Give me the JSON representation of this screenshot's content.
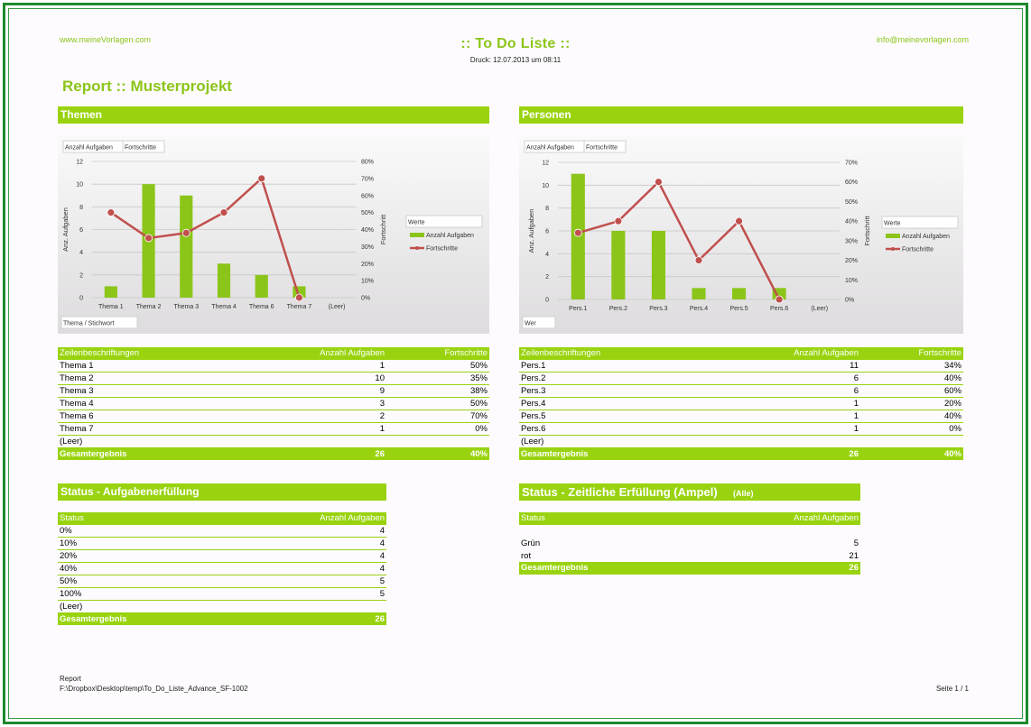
{
  "header": {
    "left_link": "www.meineVorlagen.com",
    "title": ":: To Do Liste ::",
    "print_info": "Druck: 12.07.2013 um 08:11",
    "right_link": "info@meinevorlagen.com"
  },
  "report_title": "Report :: Musterprojekt",
  "themen": {
    "section_title": "Themen",
    "chart_data": {
      "type": "bar",
      "field_buttons": [
        "Anzahl Aufgaben",
        "Fortschritte"
      ],
      "axis_button": "Thema / Stichwort",
      "categories": [
        "Thema 1",
        "Thema 2",
        "Thema 3",
        "Thema 4",
        "Thema 6",
        "Thema 7",
        "(Leer)"
      ],
      "ylabel": "Anz. Aufgaben",
      "y2label": "Fortschritt",
      "ylim": [
        0,
        12
      ],
      "yticks": [
        "0",
        "2",
        "4",
        "6",
        "8",
        "10",
        "12"
      ],
      "y2lim": [
        0,
        80
      ],
      "y2ticks": [
        "0%",
        "10%",
        "20%",
        "30%",
        "40%",
        "50%",
        "60%",
        "70%",
        "80%"
      ],
      "legend_title": "Werte",
      "legend_placement": "right",
      "series": [
        {
          "name": "Anzahl Aufgaben",
          "type": "bar",
          "color": "#8cc51a",
          "values": [
            1,
            10,
            9,
            3,
            2,
            1,
            null
          ]
        },
        {
          "name": "Fortschritte",
          "type": "line",
          "color": "#c0504d",
          "values": [
            50,
            35,
            38,
            50,
            70,
            0,
            null
          ]
        }
      ]
    },
    "table": {
      "headers": [
        "Zeilenbeschriftungen",
        "Anzahl Aufgaben",
        "Fortschritte"
      ],
      "rows": [
        [
          "Thema 1",
          "1",
          "50%"
        ],
        [
          "Thema 2",
          "10",
          "35%"
        ],
        [
          "Thema 3",
          "9",
          "38%"
        ],
        [
          "Thema 4",
          "3",
          "50%"
        ],
        [
          "Thema 6",
          "2",
          "70%"
        ],
        [
          "Thema 7",
          "1",
          "0%"
        ],
        [
          "(Leer)",
          "",
          ""
        ]
      ],
      "total": [
        "Gesamtergebnis",
        "26",
        "40%"
      ]
    }
  },
  "personen": {
    "section_title": "Personen",
    "chart_data": {
      "type": "bar",
      "field_buttons": [
        "Anzahl Aufgaben",
        "Fortschritte"
      ],
      "axis_button": "Wer",
      "categories": [
        "Pers.1",
        "Pers.2",
        "Pers.3",
        "Pers.4",
        "Pers.5",
        "Pers.6",
        "(Leer)"
      ],
      "ylabel": "Anz. Aufgaben",
      "y2label": "Fortschritt",
      "ylim": [
        0,
        12
      ],
      "yticks": [
        "0",
        "2",
        "4",
        "6",
        "8",
        "10",
        "12"
      ],
      "y2lim": [
        0,
        70
      ],
      "y2ticks": [
        "0%",
        "10%",
        "20%",
        "30%",
        "40%",
        "50%",
        "60%",
        "70%"
      ],
      "legend_title": "Werte",
      "legend_placement": "right",
      "series": [
        {
          "name": "Anzahl Aufgaben",
          "type": "bar",
          "color": "#8cc51a",
          "values": [
            11,
            6,
            6,
            1,
            1,
            1,
            null
          ]
        },
        {
          "name": "Fortschritte",
          "type": "line",
          "color": "#c0504d",
          "values": [
            34,
            40,
            60,
            20,
            40,
            0,
            null
          ]
        }
      ]
    },
    "table": {
      "headers": [
        "Zeilenbeschriftungen",
        "Anzahl Aufgaben",
        "Fortschritte"
      ],
      "rows": [
        [
          "Pers.1",
          "11",
          "34%"
        ],
        [
          "Pers.2",
          "6",
          "40%"
        ],
        [
          "Pers.3",
          "6",
          "60%"
        ],
        [
          "Pers.4",
          "1",
          "20%"
        ],
        [
          "Pers.5",
          "1",
          "40%"
        ],
        [
          "Pers.6",
          "1",
          "0%"
        ],
        [
          "(Leer)",
          "",
          ""
        ]
      ],
      "total": [
        "Gesamtergebnis",
        "26",
        "40%"
      ]
    }
  },
  "status_aufgaben": {
    "section_title": "Status - Aufgabenerfüllung",
    "headers": [
      "Status",
      "Anzahl Aufgaben"
    ],
    "rows": [
      [
        "0%",
        "4"
      ],
      [
        "10%",
        "4"
      ],
      [
        "20%",
        "4"
      ],
      [
        "40%",
        "4"
      ],
      [
        "50%",
        "5"
      ],
      [
        "100%",
        "5"
      ],
      [
        "(Leer)",
        ""
      ]
    ],
    "total": [
      "Gesamtergebnis",
      "26"
    ]
  },
  "status_zeit": {
    "section_title": "Status - Zeitliche Erfüllung (Ampel)",
    "filter_label": "(Alle)",
    "headers": [
      "Status",
      "Anzahl Aufgaben"
    ],
    "rows": [
      [
        "Grün",
        "5"
      ],
      [
        "rot",
        "21"
      ]
    ],
    "total": [
      "Gesamtergebnis",
      "26"
    ]
  },
  "footer": {
    "label": "Report",
    "path": "F:\\Dropbox\\Desktop\\temp\\To_Do_Liste_Advance_SF-1002",
    "page": "Seite 1 / 1"
  },
  "colors": {
    "accent": "#99d30f",
    "bar": "#8cc51a",
    "line": "#c0504d",
    "frame": "#1e8a2e"
  }
}
